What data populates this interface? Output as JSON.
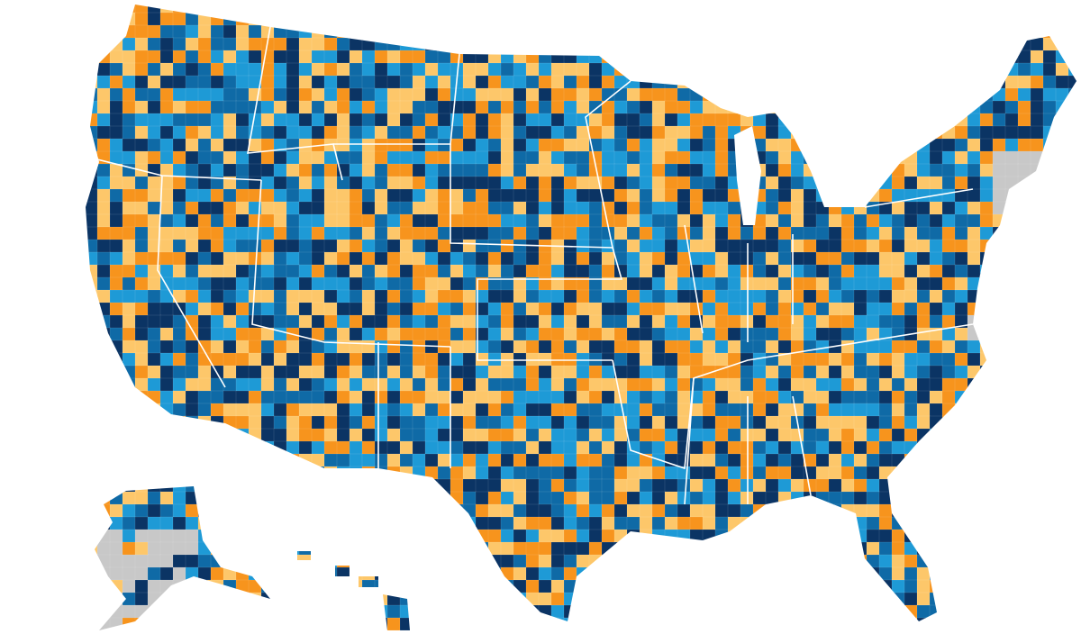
{
  "map": {
    "palette": [
      "#0b3464",
      "#0f6aa6",
      "#1e9ad6",
      "#f7941d",
      "#fdc76a"
    ],
    "no_data_color": "#c8c8c8"
  }
}
